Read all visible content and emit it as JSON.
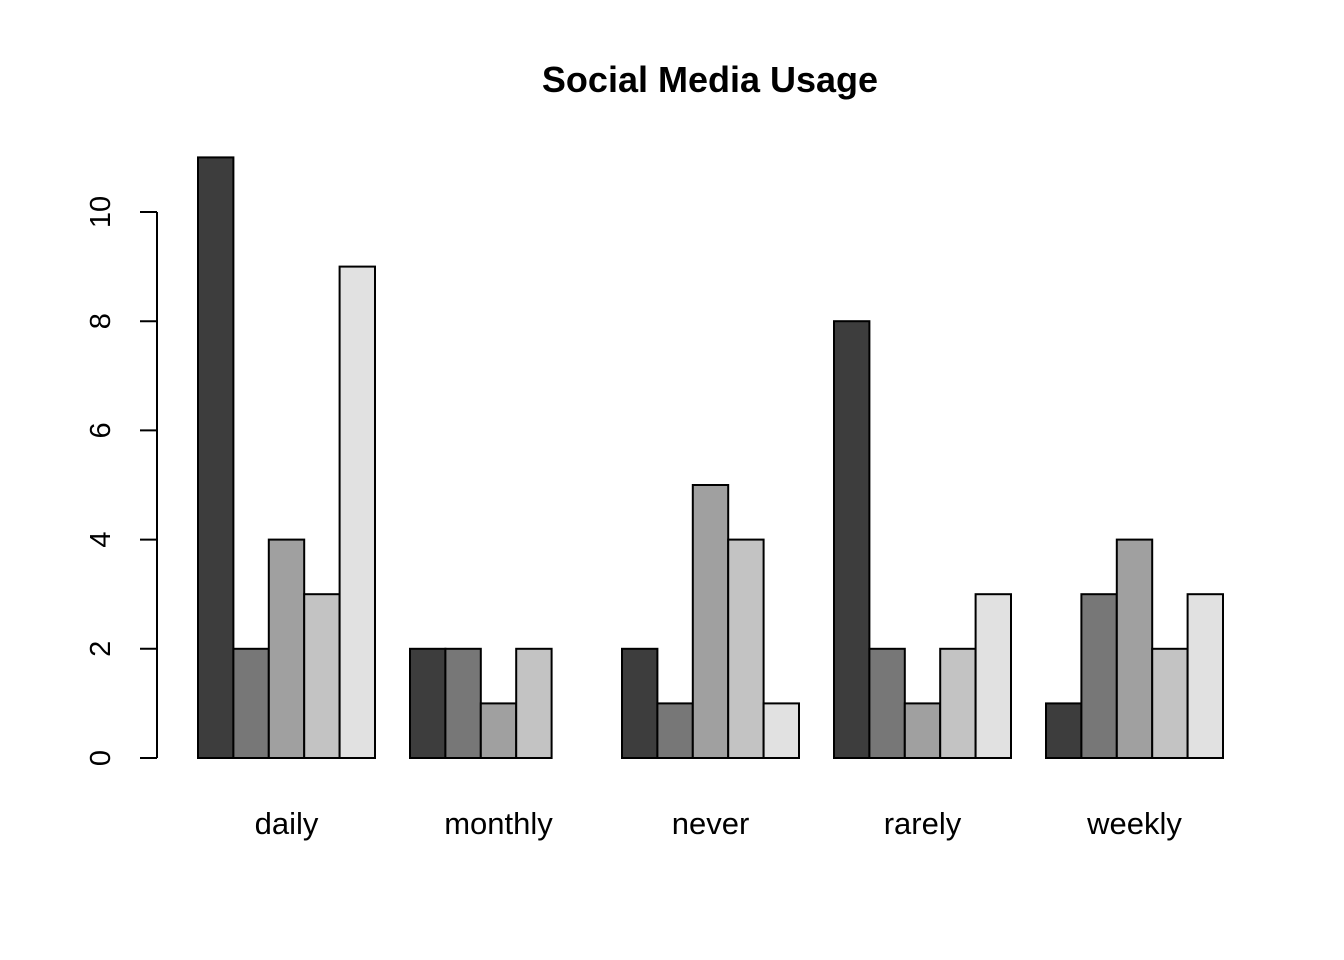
{
  "chart_data": {
    "type": "bar",
    "title": "Social Media Usage",
    "xlabel": "",
    "ylabel": "",
    "categories": [
      "daily",
      "monthly",
      "never",
      "rarely",
      "weekly"
    ],
    "series": [
      {
        "color": "#3d3d3d",
        "values": [
          11,
          2,
          2,
          8,
          1
        ]
      },
      {
        "color": "#777777",
        "values": [
          2,
          2,
          1,
          2,
          3
        ]
      },
      {
        "color": "#a0a0a0",
        "values": [
          4,
          1,
          5,
          1,
          4
        ]
      },
      {
        "color": "#c3c3c3",
        "values": [
          3,
          2,
          4,
          2,
          2
        ]
      },
      {
        "color": "#e1e1e1",
        "values": [
          9,
          0,
          1,
          3,
          3
        ]
      }
    ],
    "yticks": [
      0,
      2,
      4,
      6,
      8,
      10
    ],
    "ylim": [
      0,
      11
    ],
    "grid": false,
    "legend": "none"
  }
}
